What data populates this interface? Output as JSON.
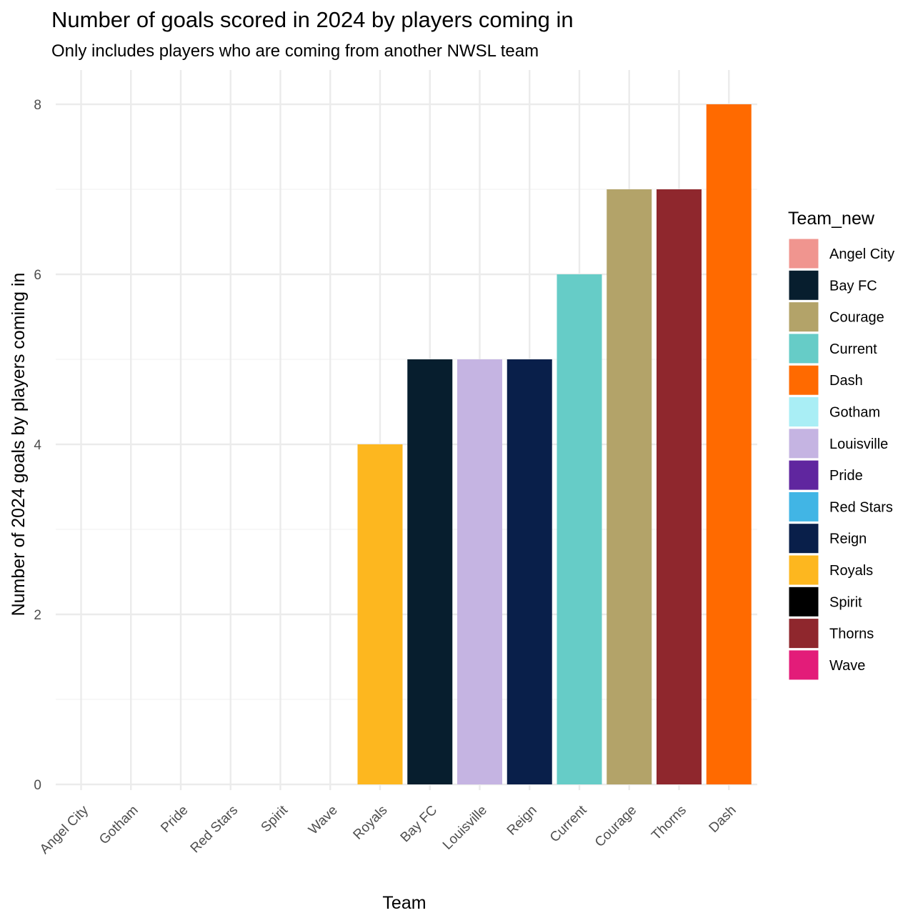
{
  "chart_data": {
    "type": "bar",
    "title": "Number of goals scored in 2024 by players coming in",
    "subtitle": "Only includes players who are coming from another NWSL team",
    "xlabel": "Team",
    "ylabel": "Number of 2024 goals by players coming in",
    "categories": [
      "Angel City",
      "Gotham",
      "Pride",
      "Red Stars",
      "Spirit",
      "Wave",
      "Royals",
      "Bay FC",
      "Louisville",
      "Reign",
      "Current",
      "Courage",
      "Thorns",
      "Dash"
    ],
    "values": [
      0,
      0,
      0,
      0,
      0,
      0,
      4,
      5,
      5,
      5,
      6,
      7,
      7,
      8
    ],
    "ylim": [
      0,
      8
    ],
    "yticks": [
      0,
      2,
      4,
      6,
      8
    ],
    "grid": true,
    "legend": {
      "title": "Team_new",
      "placement": "right",
      "entries": [
        {
          "label": "Angel City",
          "color": "#F0958F"
        },
        {
          "label": "Bay FC",
          "color": "#071E2E"
        },
        {
          "label": "Courage",
          "color": "#B3A369"
        },
        {
          "label": "Current",
          "color": "#66CCC7"
        },
        {
          "label": "Dash",
          "color": "#FF6A00"
        },
        {
          "label": "Gotham",
          "color": "#A9EEF5"
        },
        {
          "label": "Louisville",
          "color": "#C5B4E2"
        },
        {
          "label": "Pride",
          "color": "#60269F"
        },
        {
          "label": "Red Stars",
          "color": "#41B5E5"
        },
        {
          "label": "Reign",
          "color": "#091F4A"
        },
        {
          "label": "Royals",
          "color": "#FDB71F"
        },
        {
          "label": "Spirit",
          "color": "#000000"
        },
        {
          "label": "Thorns",
          "color": "#8F272D"
        },
        {
          "label": "Wave",
          "color": "#E31C79"
        }
      ]
    }
  }
}
